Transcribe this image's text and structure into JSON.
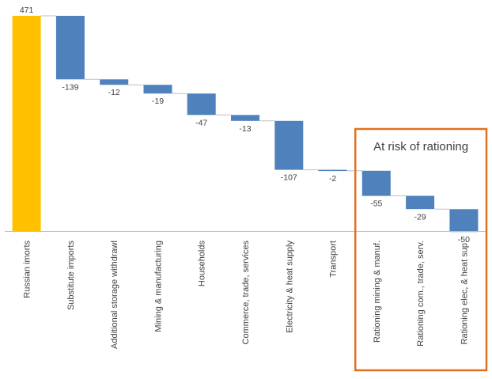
{
  "chart_data": {
    "type": "bar",
    "subtype": "waterfall",
    "categories": [
      "Russian imorts",
      "Substitute imports",
      "Additional storage withdrawl",
      "Mining & manufacturing",
      "Households",
      "Commerce, trade, services",
      "Electricity & heat supply",
      "Transport",
      "Rationing mining & manuf.",
      "Rationing com., trade, serv.",
      "Rationing elec, & heat sup."
    ],
    "values": [
      471,
      -139,
      -12,
      -19,
      -47,
      -13,
      -107,
      -2,
      -55,
      -29,
      -50
    ],
    "value_labels": [
      "471",
      "-139",
      "-12",
      "-19",
      "-47",
      "-13",
      "-107",
      "-2",
      "-55",
      "-29",
      "-50"
    ],
    "ylim": [
      0,
      471
    ],
    "colors": {
      "total": "#FFC000",
      "decrease": "#4F81BD",
      "connector": "#BFBFBF",
      "axis": "#BFBFBF",
      "highlight_box": "#E07020"
    },
    "annotation": {
      "text": "At risk of rationing",
      "applies_to": [
        8,
        9,
        10
      ]
    },
    "title": "",
    "xlabel": "",
    "ylabel": "",
    "grid": false,
    "legend": "none"
  }
}
